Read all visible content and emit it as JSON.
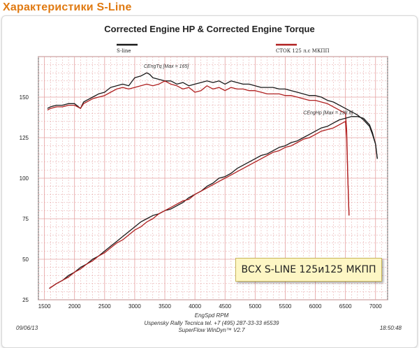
{
  "heading": "Характеристики S-Line",
  "overlay_label": "ВСХ S-LINE 125и125 МКПП",
  "colors": {
    "heading": "#e07a12",
    "series_black": "#1a1a1a",
    "series_red": "#b02020",
    "grid": "#e4a0a0"
  },
  "chart_data": {
    "type": "line",
    "title": "Corrected Engine HP & Corrected Engine Torque",
    "xlabel": "EngSpd  RPM",
    "ylabel": "",
    "xlim": [
      1400,
      7200
    ],
    "ylim": [
      25,
      175
    ],
    "xticks": [
      1500,
      2000,
      2500,
      3000,
      3500,
      4000,
      4500,
      5000,
      5500,
      6000,
      6500,
      7000
    ],
    "yticks": [
      25,
      50,
      75,
      100,
      125,
      150
    ],
    "grid": true,
    "legend_position": "top",
    "annotations": [
      {
        "text": "CEngTq [Max = 165]",
        "x": 3150,
        "y": 168
      },
      {
        "text": "CEngHp [Max = 138.6]",
        "x": 5800,
        "y": 139.5
      }
    ],
    "footer": {
      "left_date": "09/06/13",
      "right_time": "18:50:48",
      "line1": "Uspensky Rally Tecnica  tel. +7 (495) 287-33-33 #5539",
      "line2": "SuperFlow WinDyn™ V2.7"
    },
    "series": [
      {
        "name": "S-line",
        "color": "#1a1a1a",
        "group": "torque",
        "x": [
          1550,
          1600,
          1700,
          1800,
          1900,
          2000,
          2100,
          2150,
          2200,
          2300,
          2400,
          2500,
          2600,
          2700,
          2800,
          2900,
          3000,
          3100,
          3200,
          3250,
          3300,
          3400,
          3500,
          3600,
          3700,
          3800,
          3900,
          4000,
          4100,
          4200,
          4300,
          4400,
          4500,
          4600,
          4700,
          4800,
          4900,
          5000,
          5100,
          5200,
          5300,
          5400,
          5500,
          5600,
          5700,
          5800,
          5900,
          6000,
          6100,
          6200,
          6300,
          6400,
          6500,
          6600,
          6700,
          6800,
          6900,
          6950,
          7000,
          7030
        ],
        "y": [
          143,
          144,
          145,
          145,
          146,
          146,
          143,
          147,
          148,
          150,
          152,
          153,
          156,
          157,
          158,
          157,
          162,
          163,
          165,
          164,
          162,
          161,
          160,
          160,
          158,
          159,
          157,
          158,
          159,
          160,
          159,
          160,
          158,
          160,
          159,
          158,
          158,
          157,
          156,
          156,
          156,
          155,
          155,
          154,
          153,
          152,
          151,
          151,
          150,
          148,
          147,
          145,
          143,
          141,
          139,
          136,
          132,
          127,
          121,
          112
        ]
      },
      {
        "name": "СТОК 125 л.с МКПП",
        "color": "#b02020",
        "group": "torque",
        "x": [
          1550,
          1600,
          1700,
          1800,
          1900,
          2000,
          2100,
          2150,
          2200,
          2300,
          2400,
          2500,
          2600,
          2700,
          2800,
          2900,
          3000,
          3100,
          3200,
          3300,
          3400,
          3500,
          3600,
          3700,
          3800,
          3900,
          4000,
          4100,
          4200,
          4300,
          4400,
          4500,
          4600,
          4700,
          4800,
          4900,
          5000,
          5100,
          5200,
          5300,
          5400,
          5500,
          5600,
          5700,
          5800,
          5900,
          6000,
          6100,
          6200,
          6300,
          6400,
          6450,
          6500,
          6520,
          6540,
          6560
        ],
        "y": [
          142,
          143,
          144,
          144,
          145,
          145,
          143,
          146,
          147,
          149,
          150,
          151,
          153,
          155,
          156,
          155,
          156,
          157,
          158,
          157,
          158,
          160,
          158,
          157,
          155,
          156,
          153,
          154,
          157,
          155,
          156,
          154,
          156,
          155,
          155,
          154,
          154,
          153,
          152,
          152,
          152,
          151,
          151,
          150,
          149,
          148,
          148,
          147,
          146,
          144,
          142,
          141,
          140,
          130,
          100,
          77
        ]
      },
      {
        "name": "S-line",
        "color": "#1a1a1a",
        "group": "power",
        "x": [
          1580,
          1700,
          1800,
          1900,
          2000,
          2100,
          2200,
          2300,
          2400,
          2500,
          2600,
          2700,
          2800,
          2900,
          3000,
          3100,
          3200,
          3300,
          3400,
          3500,
          3600,
          3700,
          3800,
          3900,
          4000,
          4100,
          4200,
          4300,
          4400,
          4500,
          4600,
          4700,
          4800,
          4900,
          5000,
          5100,
          5200,
          5300,
          5400,
          5500,
          5600,
          5700,
          5800,
          5900,
          6000,
          6100,
          6200,
          6300,
          6400,
          6500,
          6600,
          6700,
          6800,
          6900,
          6950,
          7000,
          7030
        ],
        "y": [
          32,
          35,
          37,
          40,
          42,
          45,
          47,
          50,
          52,
          55,
          58,
          61,
          64,
          67,
          70,
          73,
          75,
          77,
          78,
          80,
          81,
          83,
          85,
          88,
          90,
          92,
          95,
          97,
          100,
          101,
          103,
          106,
          108,
          110,
          112,
          114,
          115,
          117,
          119,
          120,
          122,
          123,
          125,
          127,
          129,
          131,
          132,
          134,
          136,
          137,
          138,
          138,
          137,
          133,
          128,
          121,
          112
        ]
      },
      {
        "name": "СТОК 125 л.с МКПП",
        "color": "#b02020",
        "group": "power",
        "x": [
          1580,
          1700,
          1800,
          1900,
          2000,
          2100,
          2200,
          2300,
          2400,
          2500,
          2600,
          2700,
          2800,
          2900,
          3000,
          3100,
          3200,
          3300,
          3400,
          3500,
          3600,
          3700,
          3800,
          3900,
          4000,
          4100,
          4200,
          4300,
          4400,
          4500,
          4600,
          4700,
          4800,
          4900,
          5000,
          5100,
          5200,
          5300,
          5400,
          5500,
          5600,
          5700,
          5800,
          5900,
          6000,
          6100,
          6200,
          6300,
          6400,
          6450,
          6500,
          6520,
          6540,
          6560
        ],
        "y": [
          32,
          35,
          37,
          39,
          42,
          44,
          47,
          49,
          52,
          54,
          57,
          60,
          62,
          65,
          68,
          70,
          73,
          75,
          78,
          80,
          82,
          84,
          86,
          87,
          90,
          92,
          94,
          96,
          98,
          100,
          102,
          104,
          106,
          108,
          110,
          112,
          114,
          116,
          117,
          119,
          120,
          122,
          124,
          125,
          127,
          129,
          130,
          131,
          133,
          134,
          135,
          125,
          100,
          77
        ]
      }
    ]
  }
}
